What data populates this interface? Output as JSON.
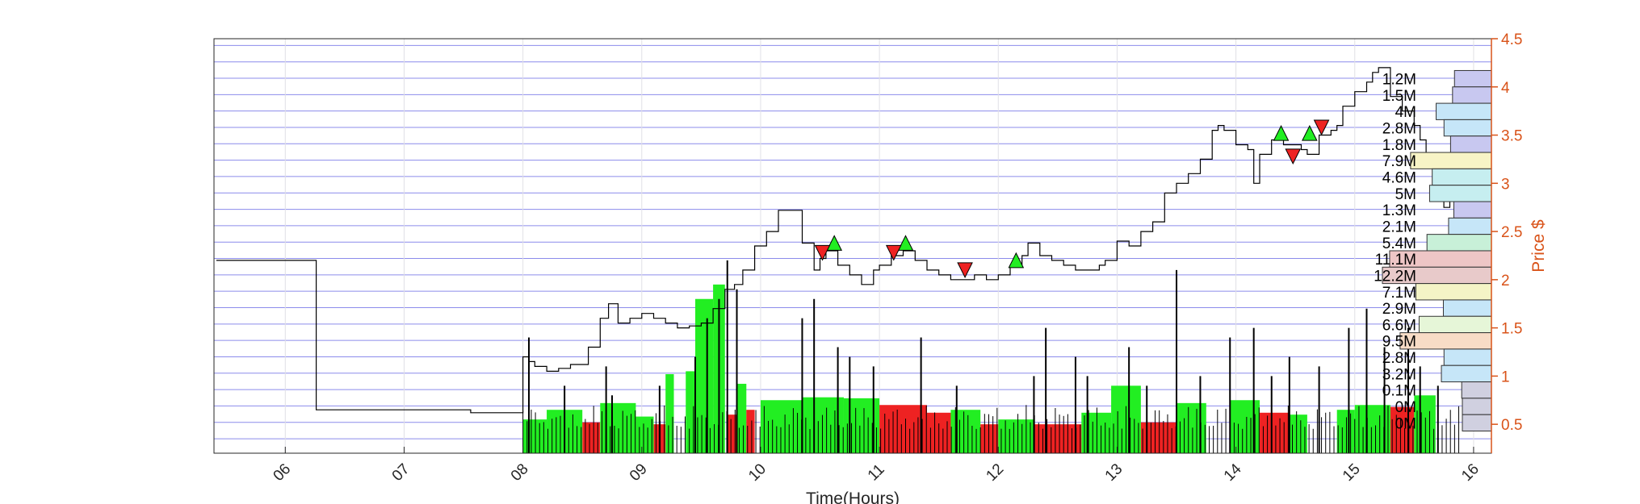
{
  "colors": {
    "price_axis": "#D95319",
    "grid_blue": "#8C8CEB",
    "buy_green": "#22EE22",
    "sell_red": "#EE2222",
    "price_line": "#000000",
    "frame": "#262626"
  },
  "chart_data": {
    "type": "line",
    "xlabel": "Time(Hours)",
    "ylabel": "Price $",
    "xlim": [
      5.4,
      16.15
    ],
    "ylim": [
      0.2,
      4.5
    ],
    "x_ticks": [
      "06",
      "07",
      "08",
      "09",
      "10",
      "11",
      "12",
      "13",
      "14",
      "15",
      "16"
    ],
    "x_tick_values": [
      6,
      7,
      8,
      9,
      10,
      11,
      12,
      13,
      14,
      15,
      16
    ],
    "y_ticks": [
      "0.5",
      "1",
      "1.5",
      "2",
      "2.5",
      "3",
      "3.5",
      "4",
      "4.5"
    ],
    "y_tick_values": [
      0.5,
      1,
      1.5,
      2,
      2.5,
      3,
      3.5,
      4,
      4.5
    ],
    "price_series": {
      "name": "Price",
      "x": [
        5.42,
        6.25,
        6.26,
        7.55,
        7.56,
        8.0,
        8.0,
        8.05,
        8.1,
        8.2,
        8.3,
        8.4,
        8.55,
        8.65,
        8.72,
        8.8,
        8.9,
        9.0,
        9.1,
        9.2,
        9.3,
        9.4,
        9.5,
        9.6,
        9.7,
        9.78,
        9.85,
        9.95,
        10.05,
        10.15,
        10.2,
        10.35,
        10.45,
        10.5,
        10.55,
        10.65,
        10.75,
        10.85,
        10.95,
        11.0,
        11.1,
        11.2,
        11.3,
        11.4,
        11.5,
        11.6,
        11.7,
        11.8,
        11.9,
        12.0,
        12.1,
        12.2,
        12.25,
        12.35,
        12.45,
        12.55,
        12.65,
        12.75,
        12.85,
        12.9,
        13.0,
        13.1,
        13.2,
        13.3,
        13.4,
        13.5,
        13.6,
        13.7,
        13.8,
        13.85,
        13.9,
        14.0,
        14.1,
        14.15,
        14.2,
        14.3,
        14.4,
        14.5,
        14.55,
        14.6,
        14.7,
        14.8,
        14.85,
        14.9,
        15.0,
        15.1,
        15.15,
        15.2,
        15.3,
        15.4,
        15.5,
        15.55,
        15.6,
        15.65,
        15.7,
        15.75,
        15.8
      ],
      "y": [
        2.2,
        2.2,
        0.65,
        0.65,
        0.62,
        0.62,
        1.2,
        1.15,
        1.1,
        1.05,
        1.08,
        1.12,
        1.3,
        1.6,
        1.75,
        1.55,
        1.6,
        1.65,
        1.6,
        1.55,
        1.5,
        1.52,
        1.55,
        1.7,
        1.9,
        1.95,
        2.1,
        2.35,
        2.5,
        2.72,
        2.72,
        2.38,
        2.1,
        2.22,
        2.3,
        2.15,
        2.05,
        1.95,
        2.1,
        2.15,
        2.25,
        2.3,
        2.2,
        2.1,
        2.05,
        2.0,
        2.0,
        2.05,
        2.0,
        2.05,
        2.15,
        2.25,
        2.38,
        2.25,
        2.2,
        2.15,
        2.1,
        2.1,
        2.15,
        2.2,
        2.4,
        2.35,
        2.5,
        2.6,
        2.9,
        3.0,
        3.1,
        3.25,
        3.55,
        3.6,
        3.55,
        3.4,
        3.35,
        3.0,
        3.3,
        3.45,
        3.4,
        3.4,
        3.35,
        3.3,
        3.5,
        3.55,
        3.6,
        3.8,
        3.95,
        4.05,
        4.15,
        4.2,
        3.9,
        3.75,
        3.6,
        3.45,
        3.3,
        3.2,
        2.9,
        2.75,
        3.0
      ]
    },
    "buy_markers": {
      "x": [
        10.62,
        11.22,
        12.15,
        14.38,
        14.62
      ],
      "y": [
        2.38,
        2.38,
        2.2,
        3.52,
        3.52
      ]
    },
    "sell_markers": {
      "x": [
        10.52,
        11.12,
        11.72,
        14.48,
        14.72
      ],
      "y": [
        2.28,
        2.28,
        2.1,
        3.28,
        3.58
      ]
    },
    "volume_spikes": {
      "x": [
        8.05,
        8.35,
        8.7,
        8.75,
        9.15,
        9.45,
        9.55,
        9.65,
        9.72,
        9.8,
        10.35,
        10.45,
        10.65,
        10.75,
        10.95,
        11.35,
        11.65,
        12.3,
        12.4,
        12.65,
        12.75,
        13.1,
        13.25,
        13.5,
        13.7,
        13.95,
        14.15,
        14.3,
        14.45,
        14.7,
        14.95,
        15.1,
        15.25,
        15.45,
        15.55,
        15.7
      ],
      "y": [
        1.4,
        0.9,
        1.1,
        0.8,
        0.9,
        1.2,
        1.6,
        1.8,
        2.2,
        1.9,
        1.6,
        1.8,
        1.3,
        1.2,
        1.1,
        1.4,
        0.9,
        1.0,
        1.5,
        1.2,
        1.0,
        1.3,
        0.9,
        2.1,
        1.0,
        1.4,
        1.5,
        1.0,
        1.2,
        1.1,
        1.5,
        1.7,
        1.3,
        1.5,
        1.1,
        0.9
      ]
    },
    "aggressive_flow": [
      {
        "x0": 8.0,
        "x1": 8.2,
        "v": 0.35,
        "side": "buy"
      },
      {
        "x0": 8.2,
        "x1": 8.5,
        "v": 0.45,
        "side": "buy"
      },
      {
        "x0": 8.5,
        "x1": 8.65,
        "v": 0.32,
        "side": "sell"
      },
      {
        "x0": 8.65,
        "x1": 8.95,
        "v": 0.52,
        "side": "buy"
      },
      {
        "x0": 8.95,
        "x1": 9.1,
        "v": 0.38,
        "side": "buy"
      },
      {
        "x0": 9.1,
        "x1": 9.2,
        "v": 0.3,
        "side": "sell"
      },
      {
        "x0": 9.2,
        "x1": 9.27,
        "v": 0.82,
        "side": "buy"
      },
      {
        "x0": 9.37,
        "x1": 9.45,
        "v": 0.85,
        "side": "buy"
      },
      {
        "x0": 9.45,
        "x1": 9.6,
        "v": 1.6,
        "side": "buy"
      },
      {
        "x0": 9.6,
        "x1": 9.7,
        "v": 1.75,
        "side": "buy"
      },
      {
        "x0": 9.8,
        "x1": 9.88,
        "v": 0.72,
        "side": "buy"
      },
      {
        "x0": 9.72,
        "x1": 9.8,
        "v": 0.4,
        "side": "sell"
      },
      {
        "x0": 9.88,
        "x1": 9.95,
        "v": 0.45,
        "side": "sell"
      },
      {
        "x0": 10.0,
        "x1": 10.35,
        "v": 0.55,
        "side": "buy"
      },
      {
        "x0": 10.35,
        "x1": 10.7,
        "v": 0.58,
        "side": "buy"
      },
      {
        "x0": 10.7,
        "x1": 11.0,
        "v": 0.57,
        "side": "buy"
      },
      {
        "x0": 11.0,
        "x1": 11.4,
        "v": 0.5,
        "side": "sell"
      },
      {
        "x0": 11.4,
        "x1": 11.8,
        "v": 0.42,
        "side": "sell"
      },
      {
        "x0": 11.6,
        "x1": 11.85,
        "v": 0.45,
        "side": "buy"
      },
      {
        "x0": 11.85,
        "x1": 12.0,
        "v": 0.3,
        "side": "sell"
      },
      {
        "x0": 12.0,
        "x1": 12.3,
        "v": 0.35,
        "side": "buy"
      },
      {
        "x0": 12.3,
        "x1": 12.7,
        "v": 0.3,
        "side": "sell"
      },
      {
        "x0": 12.7,
        "x1": 12.95,
        "v": 0.42,
        "side": "buy"
      },
      {
        "x0": 12.95,
        "x1": 13.2,
        "v": 0.7,
        "side": "buy"
      },
      {
        "x0": 13.2,
        "x1": 13.5,
        "v": 0.32,
        "side": "sell"
      },
      {
        "x0": 13.5,
        "x1": 13.75,
        "v": 0.52,
        "side": "buy"
      },
      {
        "x0": 13.95,
        "x1": 14.2,
        "v": 0.55,
        "side": "buy"
      },
      {
        "x0": 14.2,
        "x1": 14.45,
        "v": 0.42,
        "side": "sell"
      },
      {
        "x0": 14.45,
        "x1": 14.6,
        "v": 0.4,
        "side": "buy"
      },
      {
        "x0": 14.85,
        "x1": 15.0,
        "v": 0.45,
        "side": "buy"
      },
      {
        "x0": 15.0,
        "x1": 15.3,
        "v": 0.5,
        "side": "buy"
      },
      {
        "x0": 15.3,
        "x1": 15.5,
        "v": 0.48,
        "side": "sell"
      },
      {
        "x0": 15.5,
        "x1": 15.68,
        "v": 0.6,
        "side": "buy"
      }
    ],
    "volume_profile": [
      {
        "label": "1.2M",
        "v": 1.2,
        "y0": 4.0,
        "y1": 4.17,
        "color": "#C8C8F0"
      },
      {
        "label": "1.5M",
        "v": 1.5,
        "y0": 3.83,
        "y1": 4.0,
        "color": "#C8C8F0"
      },
      {
        "label": "4M",
        "v": 4.0,
        "y0": 3.66,
        "y1": 3.83,
        "color": "#C6E6F8"
      },
      {
        "label": "2.8M",
        "v": 2.8,
        "y0": 3.49,
        "y1": 3.66,
        "color": "#C6E6F8"
      },
      {
        "label": "1.8M",
        "v": 1.8,
        "y0": 3.32,
        "y1": 3.49,
        "color": "#C8C8F0"
      },
      {
        "label": "7.9M",
        "v": 7.9,
        "y0": 3.15,
        "y1": 3.32,
        "color": "#F8F4C6"
      },
      {
        "label": "4.6M",
        "v": 4.6,
        "y0": 2.98,
        "y1": 3.15,
        "color": "#C6EEF0"
      },
      {
        "label": "5M",
        "v": 5.0,
        "y0": 2.81,
        "y1": 2.98,
        "color": "#C6EEF0"
      },
      {
        "label": "1.3M",
        "v": 1.3,
        "y0": 2.64,
        "y1": 2.81,
        "color": "#C8C8F0"
      },
      {
        "label": "2.1M",
        "v": 2.1,
        "y0": 2.47,
        "y1": 2.64,
        "color": "#C6E6F8"
      },
      {
        "label": "5.4M",
        "v": 5.4,
        "y0": 2.3,
        "y1": 2.47,
        "color": "#C8F0D8"
      },
      {
        "label": "11.1M",
        "v": 11.1,
        "y0": 2.13,
        "y1": 2.3,
        "color": "#EEC6C6"
      },
      {
        "label": "12.2M",
        "v": 12.2,
        "y0": 1.96,
        "y1": 2.13,
        "color": "#E8CACA"
      },
      {
        "label": "7.1M",
        "v": 7.1,
        "y0": 1.79,
        "y1": 1.96,
        "color": "#F4F4C6"
      },
      {
        "label": "2.9M",
        "v": 2.9,
        "y0": 1.62,
        "y1": 1.79,
        "color": "#C6E6F8"
      },
      {
        "label": "6.6M",
        "v": 6.6,
        "y0": 1.45,
        "y1": 1.62,
        "color": "#E6F6D8"
      },
      {
        "label": "9.5M",
        "v": 9.5,
        "y0": 1.28,
        "y1": 1.45,
        "color": "#F8DCC6"
      },
      {
        "label": "2.8M",
        "v": 2.8,
        "y0": 1.11,
        "y1": 1.28,
        "color": "#C6E6F8"
      },
      {
        "label": "3.2M",
        "v": 3.2,
        "y0": 0.94,
        "y1": 1.11,
        "color": "#C6E6F8"
      },
      {
        "label": "0.1M",
        "v": 0.1,
        "y0": 0.77,
        "y1": 0.94,
        "color": "#D0D0E0"
      },
      {
        "label": "0M",
        "v": 0.0,
        "y0": 0.6,
        "y1": 0.77,
        "color": "#D0D0E0"
      },
      {
        "label": "0M",
        "v": 0.0,
        "y0": 0.43,
        "y1": 0.6,
        "color": "#D0D0E0"
      }
    ]
  }
}
